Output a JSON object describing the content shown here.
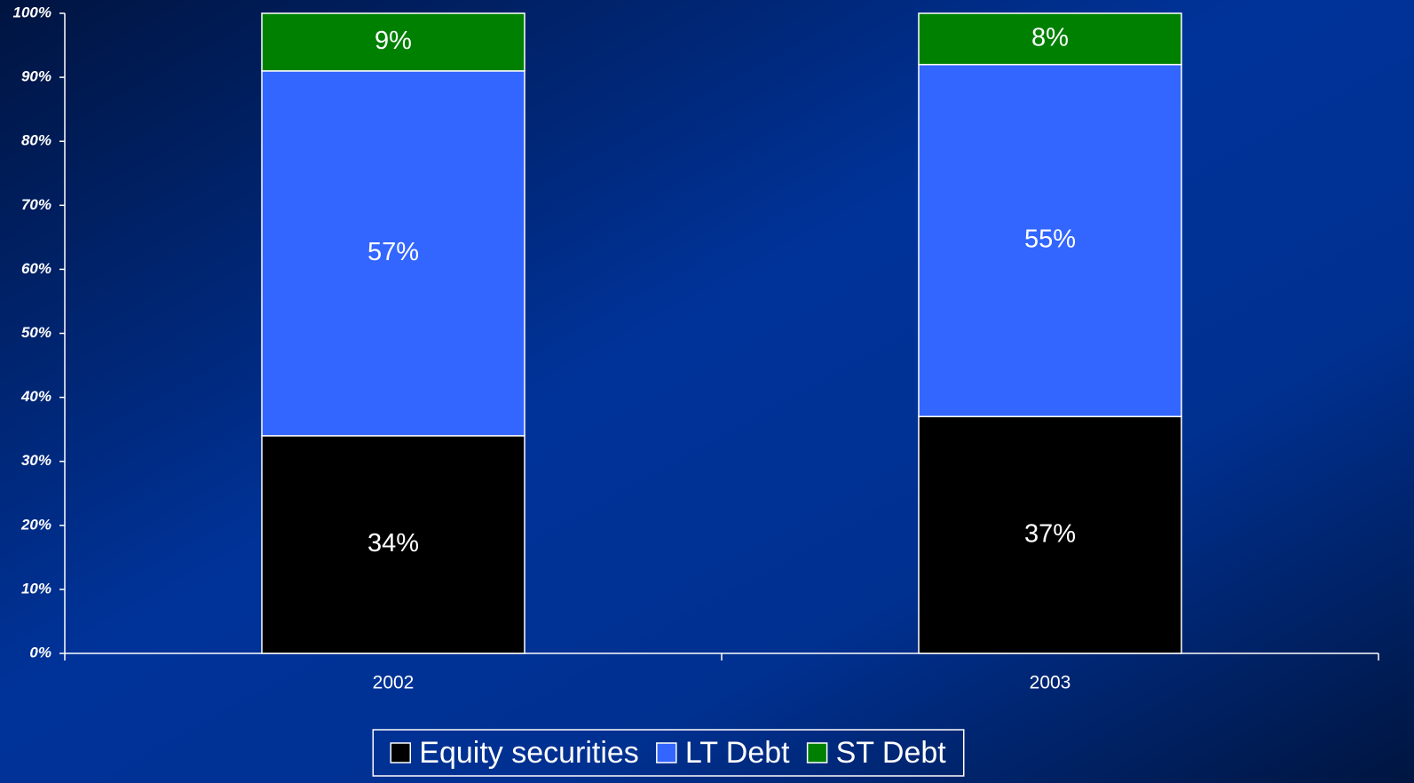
{
  "chart_data": {
    "type": "stacked_bar",
    "categories": [
      "2002",
      "2003"
    ],
    "series": [
      {
        "name": "Equity securities",
        "color": "#000000",
        "values": [
          34,
          37
        ],
        "value_labels": [
          "34%",
          "37%"
        ]
      },
      {
        "name": "LT Debt",
        "color": "#3366ff",
        "values": [
          57,
          55
        ],
        "value_labels": [
          "57%",
          "55%"
        ]
      },
      {
        "name": "ST Debt",
        "color": "#008000",
        "values": [
          9,
          8
        ],
        "value_labels": [
          "9%",
          "8%"
        ]
      }
    ],
    "ylim": [
      0,
      100
    ],
    "yticks": [
      {
        "value": 0,
        "label": "0%"
      },
      {
        "value": 10,
        "label": "10%"
      },
      {
        "value": 20,
        "label": "20%"
      },
      {
        "value": 30,
        "label": "30%"
      },
      {
        "value": 40,
        "label": "40%"
      },
      {
        "value": 50,
        "label": "50%"
      },
      {
        "value": 60,
        "label": "60%"
      },
      {
        "value": 70,
        "label": "70%"
      },
      {
        "value": 80,
        "label": "80%"
      },
      {
        "value": 90,
        "label": "90%"
      },
      {
        "value": 100,
        "label": "100%"
      }
    ],
    "grid": false,
    "legend": "bottom"
  }
}
